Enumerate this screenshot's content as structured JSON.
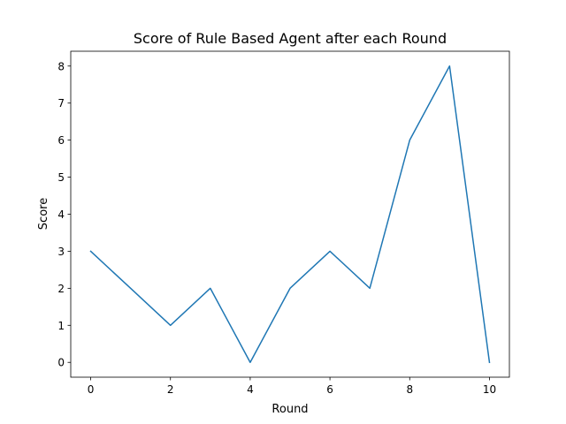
{
  "chart_data": {
    "type": "line",
    "title": "Score of Rule Based Agent after each Round",
    "xlabel": "Round",
    "ylabel": "Score",
    "x": [
      0,
      1,
      2,
      3,
      4,
      5,
      6,
      7,
      8,
      9,
      10
    ],
    "series": [
      {
        "values": [
          3,
          2,
          1,
          2,
          0,
          2,
          3,
          2,
          6,
          8,
          0
        ],
        "color": "#1f77b4"
      }
    ],
    "xlim": [
      -0.5,
      10.5
    ],
    "ylim": [
      -0.4,
      8.4
    ],
    "xticks": [
      0,
      2,
      4,
      6,
      8,
      10
    ],
    "yticks": [
      0,
      1,
      2,
      3,
      4,
      5,
      6,
      7,
      8
    ],
    "grid": false,
    "legend": false
  }
}
